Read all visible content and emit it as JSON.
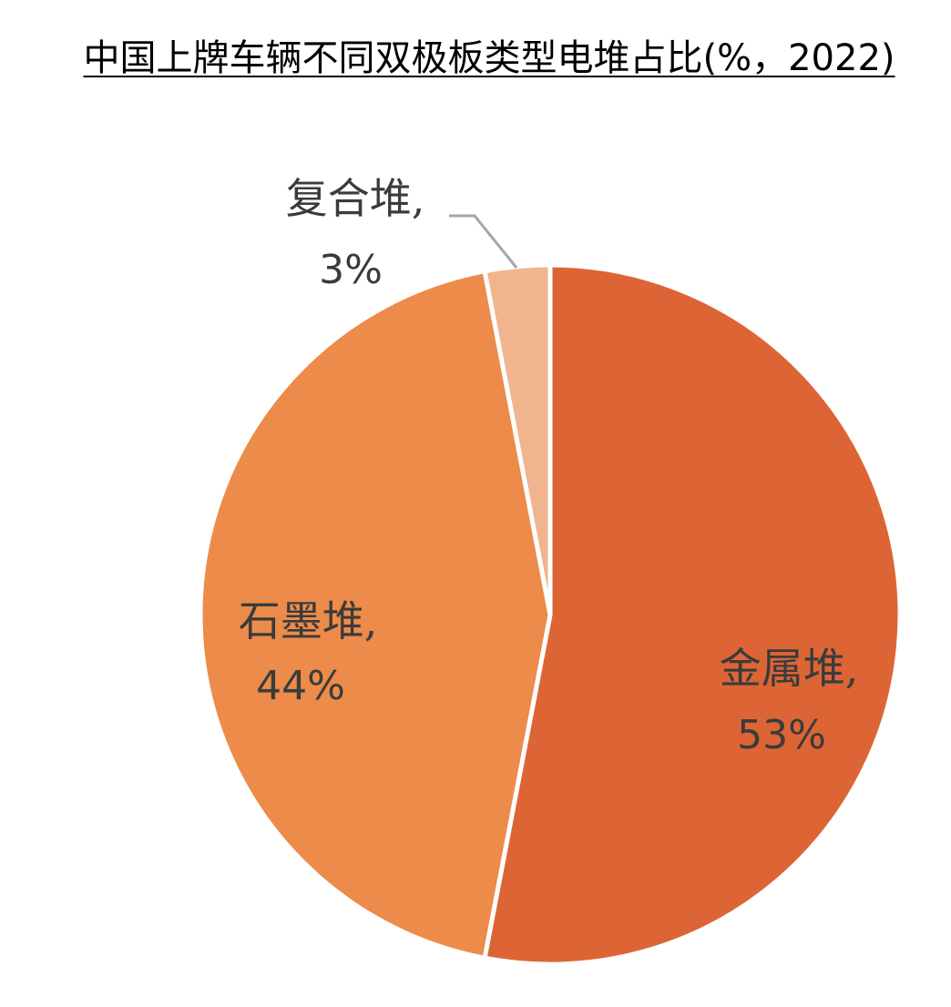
{
  "chart_data": {
    "type": "pie",
    "title": "中国上牌车辆不同双极板类型电堆占比(%，2022)",
    "slices": [
      {
        "label": "金属堆,",
        "value": 53,
        "value_label": "53%",
        "color": "#dd6535"
      },
      {
        "label": "石墨堆,",
        "value": 44,
        "value_label": "44%",
        "color": "#ec8b4a"
      },
      {
        "label": "复合堆,",
        "value": 3,
        "value_label": "3%",
        "color": "#f0b48e"
      }
    ],
    "start": "12 o'clock",
    "direction": "clockwise",
    "legend": "none"
  }
}
